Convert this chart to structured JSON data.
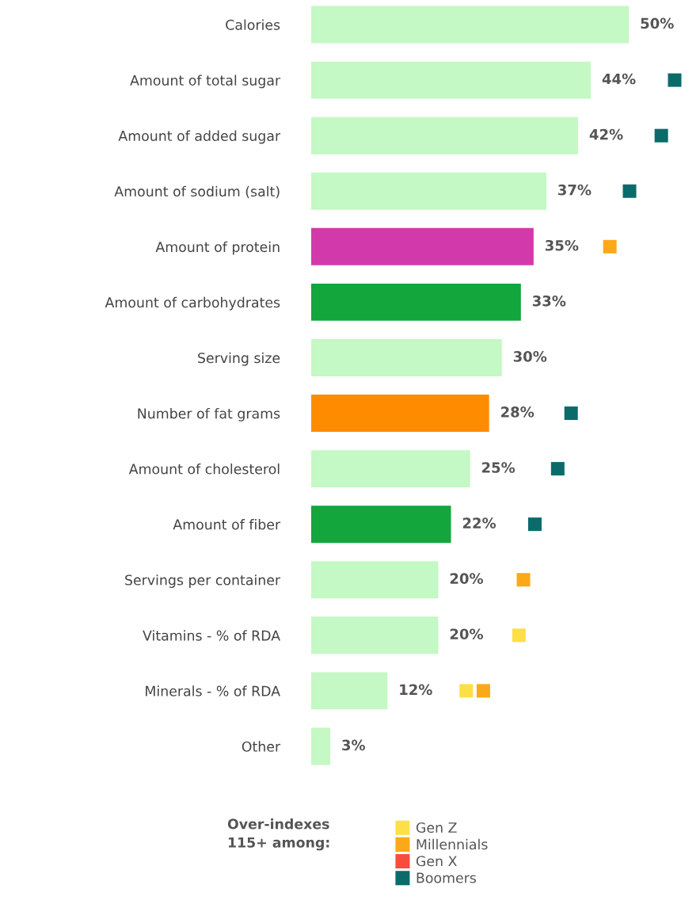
{
  "chart_data": {
    "type": "bar",
    "orientation": "horizontal",
    "categories": [
      "Calories",
      "Amount of total sugar",
      "Amount of added sugar",
      "Amount of sodium (salt)",
      "Amount of protein",
      "Amount of carbohydrates",
      "Serving size",
      "Number of fat grams",
      "Amount of cholesterol",
      "Amount of fiber",
      "Servings per container",
      "Vitamins - % of RDA",
      "Minerals - % of RDA",
      "Other"
    ],
    "values": [
      50,
      44,
      42,
      37,
      35,
      33,
      30,
      28,
      25,
      22,
      20,
      20,
      12,
      3
    ],
    "colors": [
      "#c4f8c4",
      "#c4f8c4",
      "#c4f8c4",
      "#c4f8c4",
      "#d23aab",
      "#12a63c",
      "#c4f8c4",
      "#ff8c00",
      "#c4f8c4",
      "#12a63c",
      "#c4f8c4",
      "#c4f8c4",
      "#c4f8c4",
      "#c4f8c4"
    ],
    "value_labels": [
      "50%",
      "44%",
      "42%",
      "37%",
      "35%",
      "33%",
      "30%",
      "28%",
      "25%",
      "22%",
      "20%",
      "20%",
      "12%",
      "3%"
    ],
    "tick_labels": "y",
    "grid": false,
    "legend": "bottom",
    "legend_title": "Over-indexes\n115+ among:",
    "series": [
      {
        "type": "scatter",
        "name": "Gen Z",
        "color": "#fde047",
        "values": [
          null,
          null,
          null,
          null,
          null,
          null,
          null,
          null,
          null,
          null,
          null,
          32.7,
          24.4,
          null
        ]
      },
      {
        "type": "scatter",
        "name": "Millennials",
        "color": "#fba918",
        "values": [
          null,
          null,
          null,
          null,
          47,
          null,
          null,
          null,
          null,
          null,
          33.4,
          null,
          27.1,
          null
        ]
      },
      {
        "type": "scatter",
        "name": "Gen X",
        "color": "#f94c3c",
        "values": [
          null,
          null,
          null,
          null,
          null,
          null,
          null,
          null,
          null,
          null,
          null,
          null,
          null,
          null
        ]
      },
      {
        "type": "scatter",
        "name": "Boomers",
        "color": "#0b6b6b",
        "values": [
          null,
          57.2,
          55.1,
          50.1,
          null,
          null,
          null,
          40.9,
          38.8,
          35.2,
          null,
          null,
          null,
          null
        ]
      }
    ]
  }
}
